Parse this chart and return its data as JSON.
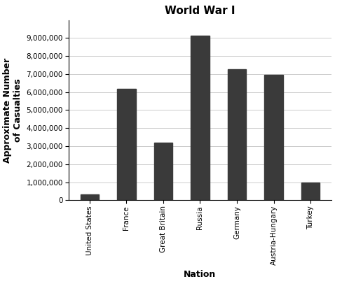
{
  "title": "World War I",
  "xlabel": "Nation",
  "ylabel": "Approximate Number\nof Casualties",
  "categories": [
    "United States",
    "France",
    "Great Britain",
    "Russia",
    "Germany",
    "Austria-Hungary",
    "Turkey"
  ],
  "values": [
    320000,
    6200000,
    3200000,
    9150000,
    7250000,
    6950000,
    975000
  ],
  "bar_color": "#3a3a3a",
  "ylim": [
    0,
    10000000
  ],
  "yticks": [
    0,
    1000000,
    2000000,
    3000000,
    4000000,
    5000000,
    6000000,
    7000000,
    8000000,
    9000000
  ],
  "background_color": "#ffffff",
  "title_fontsize": 11,
  "title_fontweight": "bold",
  "axis_label_fontsize": 9,
  "axis_label_fontweight": "bold",
  "tick_fontsize": 7.5,
  "bar_width": 0.5,
  "grid_color": "#cccccc",
  "grid_linewidth": 0.7
}
